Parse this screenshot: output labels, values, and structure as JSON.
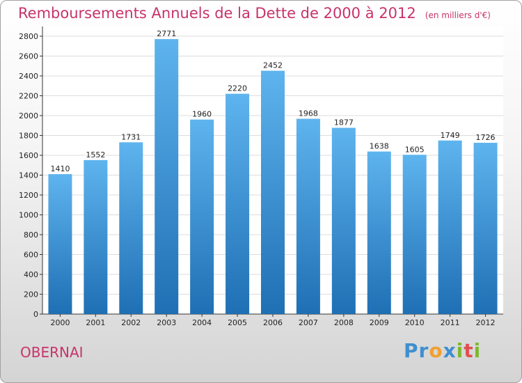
{
  "page": {
    "title": "Remboursements Annuels de la Dette de 2000 à 2012",
    "unit": "(en milliers d'€)",
    "city": "OBERNAI",
    "logo_letters": [
      {
        "ch": "P",
        "color": "#3f8fd0"
      },
      {
        "ch": "r",
        "color": "#3f8fd0"
      },
      {
        "ch": "o",
        "color": "#f0a030"
      },
      {
        "ch": "x",
        "color": "#3f8fd0"
      },
      {
        "ch": "i",
        "color": "#7cb82f"
      },
      {
        "ch": "t",
        "color": "#e05050"
      },
      {
        "ch": "i",
        "color": "#7cb82f"
      }
    ],
    "colors": {
      "title": "#c8336a",
      "bar_top": "#5eb4ee",
      "bar_bottom": "#1f6fb4",
      "grid": "#dcdcdc"
    }
  },
  "chart_data": {
    "type": "bar",
    "categories": [
      "2000",
      "2001",
      "2002",
      "2003",
      "2004",
      "2005",
      "2006",
      "2007",
      "2008",
      "2009",
      "2010",
      "2011",
      "2012"
    ],
    "values": [
      1410,
      1552,
      1731,
      2771,
      1960,
      2220,
      2452,
      1968,
      1877,
      1638,
      1605,
      1749,
      1726
    ],
    "ylim": [
      0,
      2800
    ],
    "yticks": [
      0,
      200,
      400,
      600,
      800,
      1000,
      1200,
      1400,
      1600,
      1800,
      2000,
      2200,
      2400,
      2600,
      2800
    ],
    "grid": true,
    "data_labels": true
  }
}
